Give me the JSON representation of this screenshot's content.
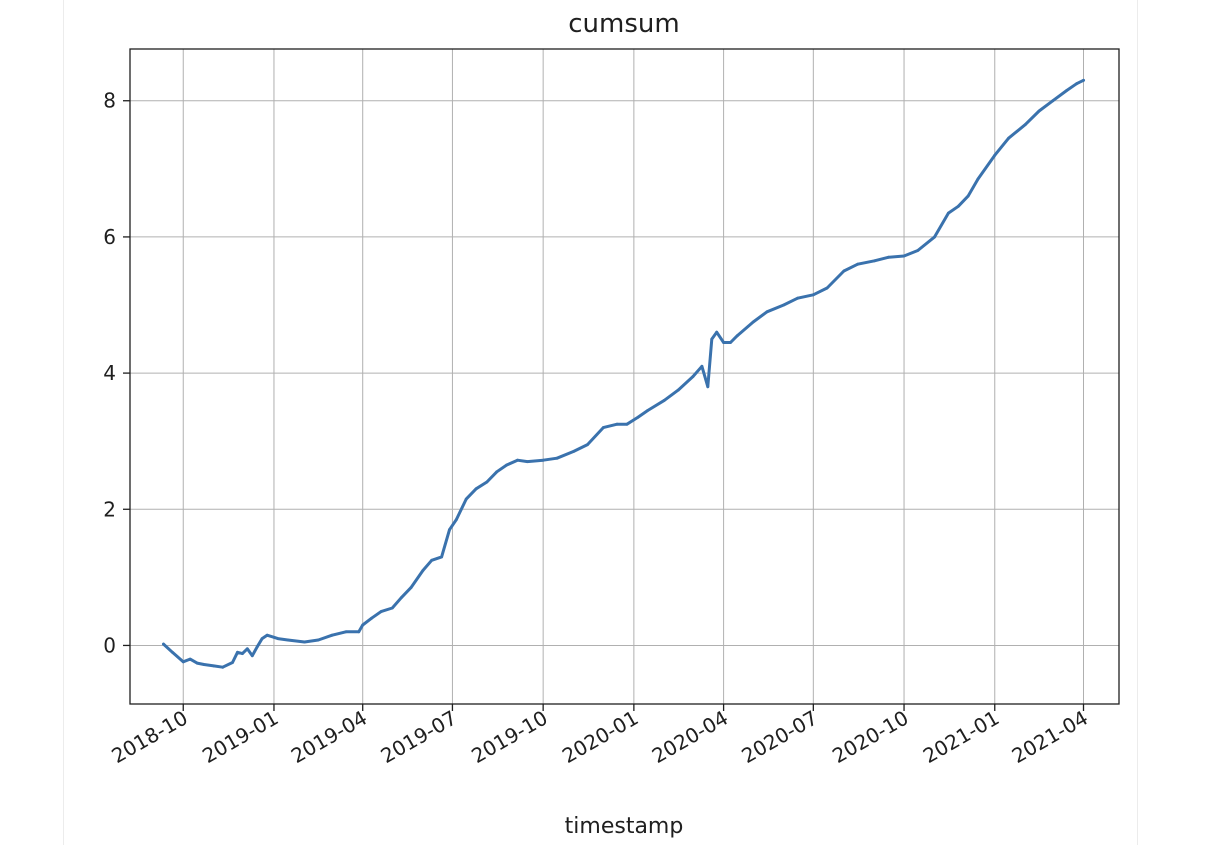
{
  "chart_data": {
    "type": "line",
    "title": "cumsum",
    "xlabel": "timestamp",
    "ylabel": "",
    "x_is_date": true,
    "xlim": [
      "2018-08-08",
      "2021-05-07"
    ],
    "ylim": [
      -0.86,
      8.76
    ],
    "grid": true,
    "legend": "none",
    "x_ticks": [
      "2018-10",
      "2019-01",
      "2019-04",
      "2019-07",
      "2019-10",
      "2020-01",
      "2020-04",
      "2020-07",
      "2020-10",
      "2021-01",
      "2021-04"
    ],
    "y_ticks": [
      0,
      2,
      4,
      6,
      8
    ],
    "series": [
      {
        "color": "#3a72ad",
        "x": [
          "2018-09-11",
          "2018-09-20",
          "2018-10-01",
          "2018-10-08",
          "2018-10-15",
          "2018-10-22",
          "2018-11-01",
          "2018-11-10",
          "2018-11-20",
          "2018-11-25",
          "2018-11-30",
          "2018-12-05",
          "2018-12-10",
          "2018-12-15",
          "2018-12-20",
          "2018-12-25",
          "2019-01-01",
          "2019-01-05",
          "2019-01-15",
          "2019-02-01",
          "2019-02-15",
          "2019-03-01",
          "2019-03-15",
          "2019-03-28",
          "2019-04-01",
          "2019-04-10",
          "2019-04-20",
          "2019-05-01",
          "2019-05-10",
          "2019-05-20",
          "2019-06-01",
          "2019-06-10",
          "2019-06-20",
          "2019-06-28",
          "2019-07-05",
          "2019-07-15",
          "2019-07-25",
          "2019-08-05",
          "2019-08-15",
          "2019-08-25",
          "2019-09-05",
          "2019-09-15",
          "2019-10-01",
          "2019-10-15",
          "2019-11-01",
          "2019-11-15",
          "2019-12-01",
          "2019-12-15",
          "2019-12-25",
          "2020-01-05",
          "2020-01-15",
          "2020-02-01",
          "2020-02-15",
          "2020-03-01",
          "2020-03-10",
          "2020-03-16",
          "2020-03-20",
          "2020-03-25",
          "2020-04-01",
          "2020-04-08",
          "2020-04-15",
          "2020-05-01",
          "2020-05-15",
          "2020-06-01",
          "2020-06-15",
          "2020-07-01",
          "2020-07-15",
          "2020-08-01",
          "2020-08-15",
          "2020-09-01",
          "2020-09-15",
          "2020-10-01",
          "2020-10-15",
          "2020-11-01",
          "2020-11-15",
          "2020-11-25",
          "2020-12-05",
          "2020-12-15",
          "2021-01-01",
          "2021-01-15",
          "2021-02-01",
          "2021-02-15",
          "2021-03-01",
          "2021-03-15",
          "2021-03-25",
          "2021-04-01"
        ],
        "values": [
          0.02,
          -0.1,
          -0.24,
          -0.2,
          -0.26,
          -0.28,
          -0.3,
          -0.32,
          -0.25,
          -0.1,
          -0.12,
          -0.05,
          -0.15,
          -0.02,
          0.1,
          0.15,
          0.12,
          0.1,
          0.08,
          0.05,
          0.08,
          0.15,
          0.2,
          0.2,
          0.3,
          0.4,
          0.5,
          0.55,
          0.7,
          0.85,
          1.1,
          1.25,
          1.3,
          1.7,
          1.85,
          2.15,
          2.3,
          2.4,
          2.55,
          2.65,
          2.72,
          2.7,
          2.72,
          2.75,
          2.85,
          2.95,
          3.2,
          3.25,
          3.25,
          3.35,
          3.45,
          3.6,
          3.75,
          3.95,
          4.1,
          3.8,
          4.5,
          4.6,
          4.45,
          4.45,
          4.55,
          4.75,
          4.9,
          5.0,
          5.1,
          5.15,
          5.25,
          5.5,
          5.6,
          5.65,
          5.7,
          5.72,
          5.8,
          6.0,
          6.35,
          6.45,
          6.6,
          6.85,
          7.2,
          7.45,
          7.65,
          7.85,
          8.0,
          8.15,
          8.25,
          8.3
        ]
      }
    ]
  }
}
